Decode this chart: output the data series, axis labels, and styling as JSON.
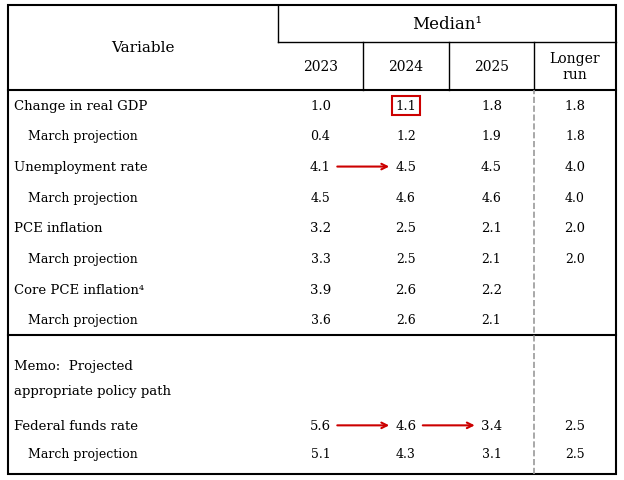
{
  "title": "Median¹",
  "col_headers": [
    "2023",
    "2024",
    "2025",
    "Longer\nrun"
  ],
  "variable_col": "Variable",
  "rows": [
    {
      "label": "Change in real GDP",
      "vals": [
        "1.0",
        "1.1",
        "1.8",
        "1.8"
      ],
      "highlight_2024": true,
      "arrow": null
    },
    {
      "label": "    March projection",
      "vals": [
        "0.4",
        "1.2",
        "1.9",
        "1.8"
      ],
      "highlight_2024": false,
      "arrow": null
    },
    {
      "label": "Unemployment rate",
      "vals": [
        "4.1",
        "4.5",
        "4.5",
        "4.0"
      ],
      "highlight_2024": false,
      "arrow": "2023_to_2024"
    },
    {
      "label": "    March projection",
      "vals": [
        "4.5",
        "4.6",
        "4.6",
        "4.0"
      ],
      "highlight_2024": false,
      "arrow": null
    },
    {
      "label": "PCE inflation",
      "vals": [
        "3.2",
        "2.5",
        "2.1",
        "2.0"
      ],
      "highlight_2024": false,
      "arrow": null
    },
    {
      "label": "    March projection",
      "vals": [
        "3.3",
        "2.5",
        "2.1",
        "2.0"
      ],
      "highlight_2024": false,
      "arrow": null
    },
    {
      "label": "Core PCE inflation⁴",
      "vals": [
        "3.9",
        "2.6",
        "2.2",
        ""
      ],
      "highlight_2024": false,
      "arrow": null
    },
    {
      "label": "    March projection",
      "vals": [
        "3.6",
        "2.6",
        "2.1",
        ""
      ],
      "highlight_2024": false,
      "arrow": null
    }
  ],
  "memo_label_line1": "Memo:  Projected",
  "memo_label_line2": "appropriate policy path",
  "memo_rows": [
    {
      "label": "Federal funds rate",
      "vals": [
        "5.6",
        "4.6",
        "3.4",
        "2.5"
      ],
      "arrow": "double"
    },
    {
      "label": "    March projection",
      "vals": [
        "5.1",
        "4.3",
        "3.1",
        "2.5"
      ],
      "arrow": null
    }
  ],
  "bg_color": "#ffffff",
  "text_color": "#000000",
  "arrow_color": "#cc0000",
  "border_color": "#000000",
  "dashed_color": "#999999",
  "highlight_color": "#cc0000"
}
